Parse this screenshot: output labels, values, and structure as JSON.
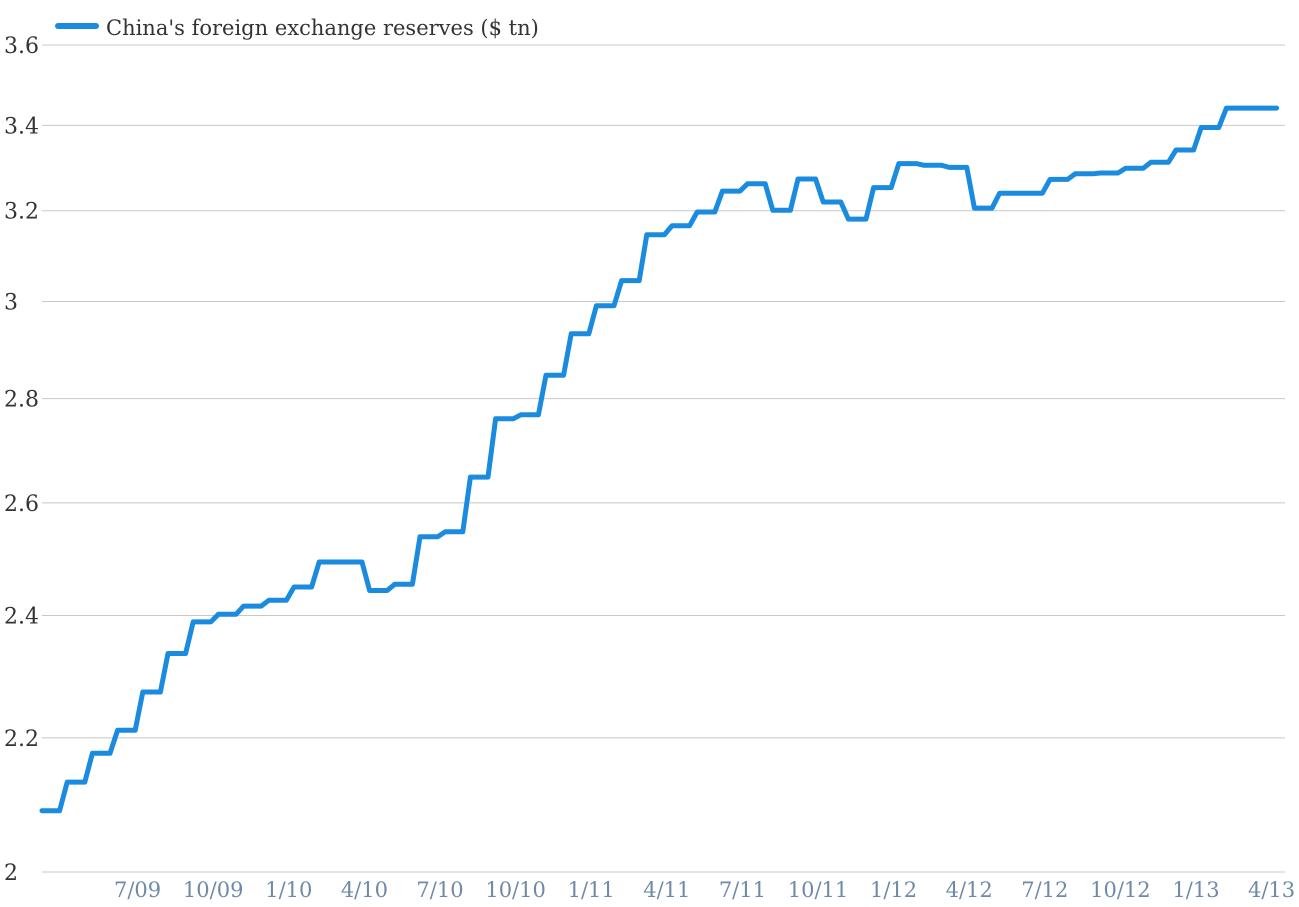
{
  "chart_data": {
    "type": "line",
    "title": "",
    "xlabel": "",
    "ylabel": "",
    "ylim": [
      2,
      3.6
    ],
    "y_scale": "log",
    "grid": true,
    "legend_position": "top-left",
    "colors": {
      "series": "#1b8be0",
      "grid": "#c8c8c8",
      "ytick": "#333333",
      "xtick": "#6f8aa8"
    },
    "y_ticks": [
      {
        "value": 2,
        "label": "2"
      },
      {
        "value": 2.2,
        "label": "2.2"
      },
      {
        "value": 2.4,
        "label": "2.4"
      },
      {
        "value": 2.6,
        "label": "2.6"
      },
      {
        "value": 2.8,
        "label": "2.8"
      },
      {
        "value": 3,
        "label": "3"
      },
      {
        "value": 3.2,
        "label": "3.2"
      },
      {
        "value": 3.4,
        "label": "3.4"
      },
      {
        "value": 3.6,
        "label": "3.6"
      }
    ],
    "x_ticks": [
      "7/09",
      "10/09",
      "1/10",
      "4/10",
      "7/10",
      "10/10",
      "1/11",
      "4/11",
      "7/11",
      "10/11",
      "1/12",
      "4/12",
      "7/12",
      "10/12",
      "1/13",
      "4/13"
    ],
    "categories": [
      "4/09",
      "5/09",
      "6/09",
      "7/09",
      "8/09",
      "9/09",
      "10/09",
      "11/09",
      "12/09",
      "1/10",
      "2/10",
      "3/10",
      "4/10",
      "5/10",
      "6/10",
      "7/10",
      "8/10",
      "9/10",
      "10/10",
      "11/10",
      "12/10",
      "1/11",
      "2/11",
      "3/11",
      "4/11",
      "5/11",
      "6/11",
      "7/11",
      "8/11",
      "9/11",
      "10/11",
      "11/11",
      "12/11",
      "1/12",
      "2/12",
      "3/12",
      "4/12",
      "5/12",
      "6/12",
      "7/12",
      "8/12",
      "9/12",
      "10/12",
      "11/12",
      "12/12",
      "1/13",
      "2/13",
      "3/13",
      "4/13"
    ],
    "series": [
      {
        "name": "China's foreign exchange reserves ($ tn)",
        "values": [
          2.089,
          2.132,
          2.176,
          2.212,
          2.273,
          2.336,
          2.389,
          2.402,
          2.416,
          2.426,
          2.449,
          2.493,
          2.493,
          2.443,
          2.454,
          2.538,
          2.547,
          2.648,
          2.76,
          2.768,
          2.847,
          2.932,
          2.991,
          3.045,
          3.146,
          3.166,
          3.197,
          3.245,
          3.262,
          3.201,
          3.273,
          3.22,
          3.181,
          3.253,
          3.309,
          3.305,
          3.3,
          3.206,
          3.24,
          3.24,
          3.272,
          3.285,
          3.287,
          3.298,
          3.312,
          3.341,
          3.395,
          3.442,
          3.442
        ]
      }
    ]
  }
}
